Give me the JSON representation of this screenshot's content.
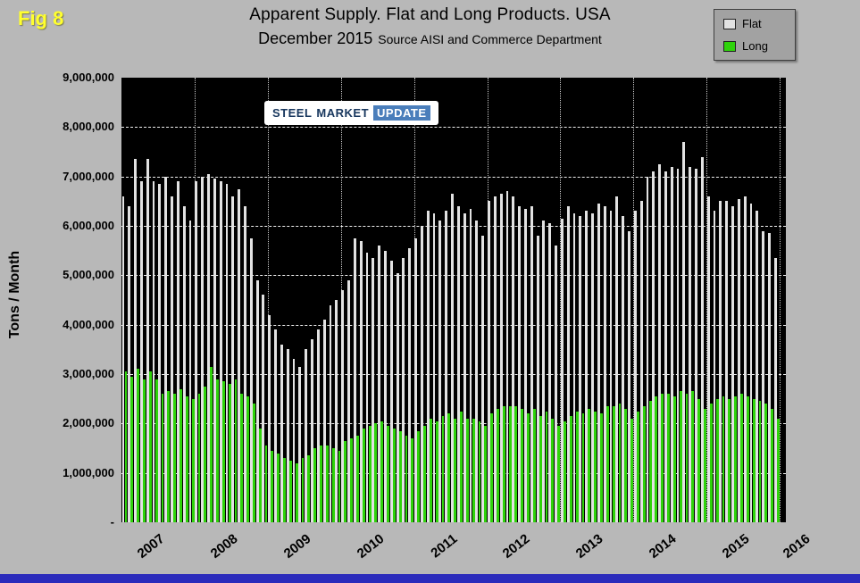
{
  "header": {
    "fig_label": "Fig 8",
    "title_line1": "Apparent Supply. Flat and Long Products. USA",
    "title_line2_main": "December 2015",
    "title_line2_source": "Source AISI and Commerce Department"
  },
  "legend": {
    "items": [
      {
        "label": "Flat"
      },
      {
        "label": "Long"
      }
    ]
  },
  "logo": {
    "part1": "STEEL",
    "part2": "MARKET",
    "part3": "UPDATE"
  },
  "colors": {
    "flat_bar": "#e2e2e2",
    "long_bar": "#2fd30b",
    "plot_background": "#000000",
    "fig_label": "#ffff2e",
    "page_background": "#b8b8b8",
    "bottom_strip": "#2b2bbb"
  },
  "chart_data": {
    "type": "bar",
    "title": "Apparent Supply. Flat and Long Products. USA",
    "subtitle": "December 2015 Source AISI and Commerce Department",
    "ylabel": "Tons / Month",
    "xlabel": "",
    "ylim": [
      0,
      9000000
    ],
    "grid": true,
    "legend_position": "top-right",
    "start_year": 2007,
    "months_per_year": 12,
    "x_year_labels": [
      "2007",
      "2008",
      "2009",
      "2010",
      "2011",
      "2012",
      "2013",
      "2014",
      "2015",
      "2016"
    ],
    "y_tick_labels": [
      "9,000,000",
      "8,000,000",
      "7,000,000",
      "6,000,000",
      "5,000,000",
      "4,000,000",
      "3,000,000",
      "2,000,000",
      "1,000,000",
      "-"
    ],
    "series": [
      {
        "name": "Flat",
        "color": "#e2e2e2",
        "values": [
          6600000,
          6400000,
          7350000,
          6900000,
          7350000,
          6900000,
          6850000,
          7000000,
          6600000,
          6900000,
          6400000,
          6100000,
          6900000,
          7000000,
          7050000,
          6950000,
          6900000,
          6850000,
          6600000,
          6750000,
          6400000,
          5750000,
          4900000,
          4600000,
          4200000,
          3900000,
          3600000,
          3500000,
          3300000,
          3150000,
          3500000,
          3700000,
          3900000,
          4100000,
          4400000,
          4500000,
          4700000,
          4900000,
          5750000,
          5700000,
          5450000,
          5350000,
          5600000,
          5500000,
          5300000,
          5050000,
          5350000,
          5550000,
          5750000,
          6000000,
          6300000,
          6250000,
          6100000,
          6300000,
          6650000,
          6400000,
          6250000,
          6350000,
          6100000,
          5800000,
          6500000,
          6600000,
          6650000,
          6700000,
          6600000,
          6400000,
          6350000,
          6400000,
          5800000,
          6100000,
          6050000,
          5600000,
          6150000,
          6400000,
          6250000,
          6200000,
          6300000,
          6250000,
          6450000,
          6400000,
          6300000,
          6600000,
          6200000,
          5900000,
          6300000,
          6500000,
          7000000,
          7100000,
          7250000,
          7100000,
          7200000,
          7150000,
          7700000,
          7200000,
          7150000,
          7400000,
          6600000,
          6300000,
          6500000,
          6500000,
          6400000,
          6550000,
          6600000,
          6450000,
          6300000,
          5900000,
          5850000,
          5350000
        ]
      },
      {
        "name": "Long",
        "color": "#2fd30b",
        "values": [
          3050000,
          2950000,
          3100000,
          2900000,
          3050000,
          2900000,
          2600000,
          2650000,
          2600000,
          2700000,
          2550000,
          2500000,
          2600000,
          2750000,
          3150000,
          2900000,
          2850000,
          2800000,
          2900000,
          2600000,
          2550000,
          2400000,
          1900000,
          1550000,
          1450000,
          1400000,
          1300000,
          1250000,
          1200000,
          1300000,
          1350000,
          1500000,
          1550000,
          1550000,
          1500000,
          1450000,
          1650000,
          1700000,
          1750000,
          1900000,
          1950000,
          2000000,
          2050000,
          1950000,
          1900000,
          1850000,
          1750000,
          1700000,
          1850000,
          1950000,
          2100000,
          2050000,
          2150000,
          2200000,
          2100000,
          2250000,
          2100000,
          2100000,
          2050000,
          1950000,
          2200000,
          2300000,
          2350000,
          2350000,
          2350000,
          2300000,
          2200000,
          2300000,
          2150000,
          2250000,
          2100000,
          1950000,
          2050000,
          2150000,
          2250000,
          2200000,
          2300000,
          2250000,
          2200000,
          2350000,
          2350000,
          2400000,
          2300000,
          2100000,
          2250000,
          2350000,
          2450000,
          2550000,
          2600000,
          2600000,
          2550000,
          2650000,
          2600000,
          2650000,
          2500000,
          2300000,
          2400000,
          2500000,
          2550000,
          2500000,
          2550000,
          2600000,
          2550000,
          2500000,
          2450000,
          2400000,
          2300000,
          2100000
        ]
      }
    ]
  }
}
